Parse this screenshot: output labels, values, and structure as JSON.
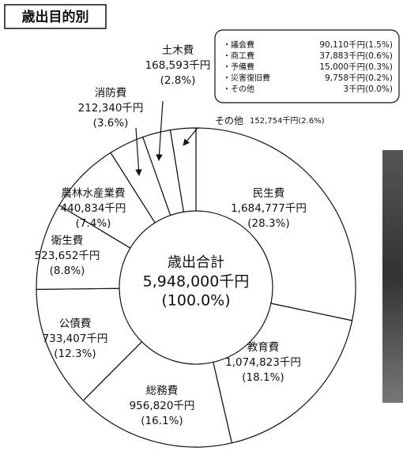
{
  "chart_data": {
    "type": "donut",
    "title": "歳出目的別",
    "categories": [
      "民生費",
      "教育費",
      "総務費",
      "公債費",
      "衛生費",
      "農林水産業費",
      "消防費",
      "土木費",
      "その他"
    ],
    "values": [
      1684777,
      1074823,
      956820,
      733407,
      523652,
      440834,
      212340,
      168593,
      152754
    ],
    "value_labels": [
      "1,684,777千円",
      "1,074,823千円",
      "956,820千円",
      "733,407千円",
      "523,652千円",
      "440,834千円",
      "212,340千円",
      "168,593千円",
      "152,754千円"
    ],
    "percent_labels": [
      "(28.3%)",
      "(18.1%)",
      "(16.1%)",
      "(12.3%)",
      "(8.8%)",
      "(7.4%)",
      "(3.6%)",
      "(2.8%)",
      "(2.6%)"
    ],
    "center": {
      "label": "歳出合計",
      "total": "5,948,000千円",
      "percent": "(100.0%)"
    },
    "breakdown": [
      {
        "name": "・議会費",
        "value": "90,110千円",
        "percent": "(1.5%)"
      },
      {
        "name": "・商工費",
        "value": "37,883千円",
        "percent": "(0.6%)"
      },
      {
        "name": "・予備費",
        "value": "15,000千円",
        "percent": "(0.3%)"
      },
      {
        "name": "・災害復旧費",
        "value": "9,758千円",
        "percent": "(0.2%)"
      },
      {
        "name": "・その他",
        "value": "3千円",
        "percent": "(0.0%)"
      }
    ],
    "color": "#ffffff"
  }
}
